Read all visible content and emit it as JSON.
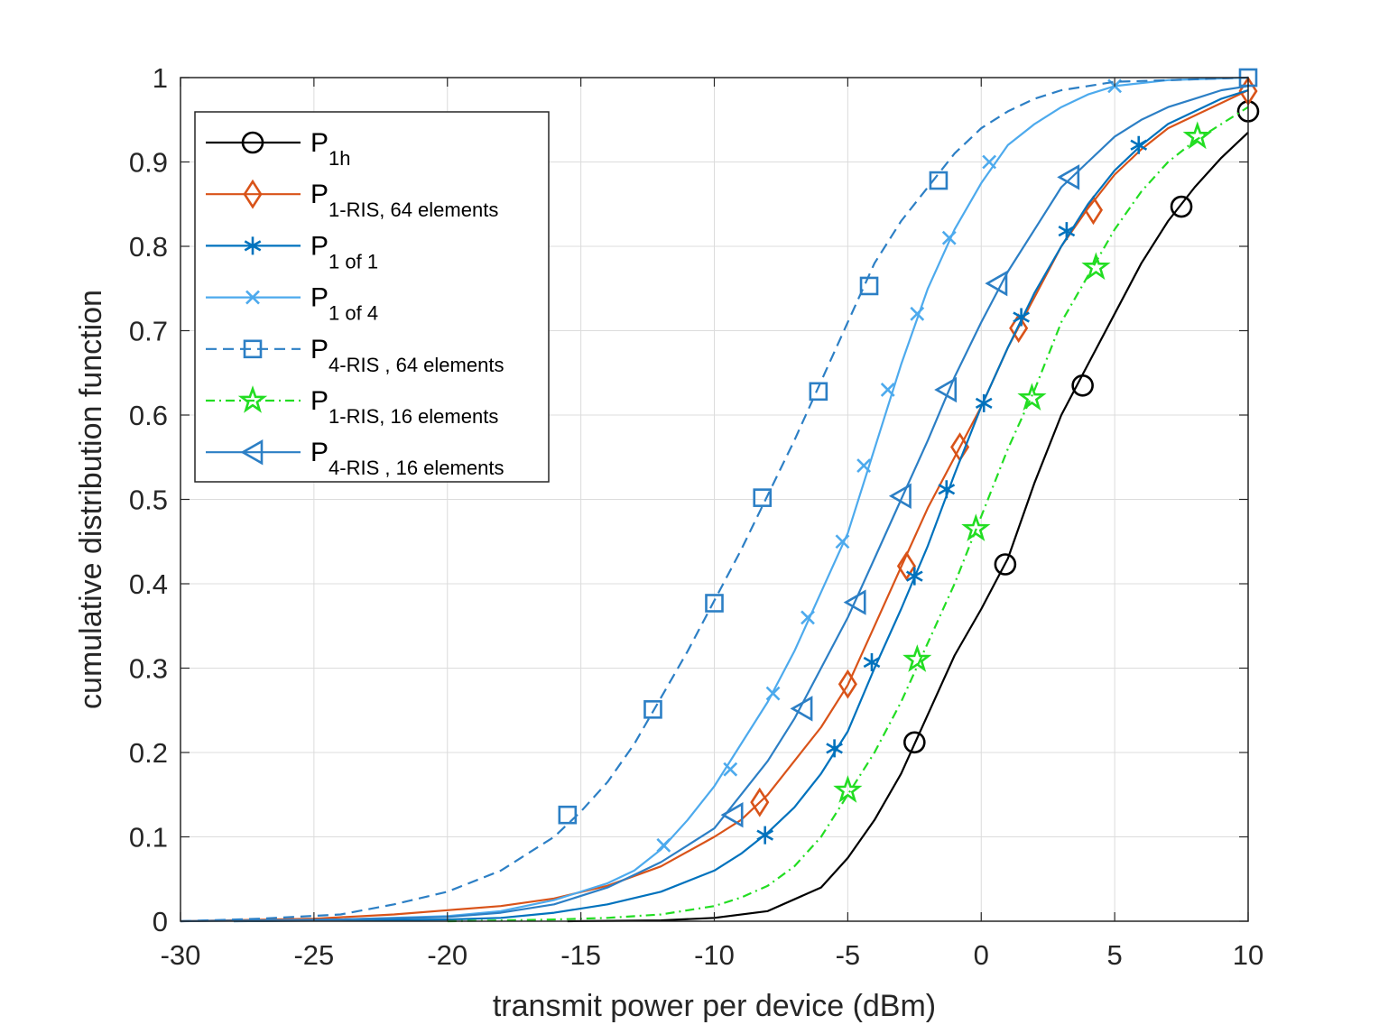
{
  "chart_data": {
    "type": "line",
    "title": "",
    "xlabel": "transmit power per device (dBm)",
    "ylabel": "cumulative distribution function",
    "xlim": [
      -30,
      10
    ],
    "ylim": [
      0,
      1
    ],
    "x_ticks": [
      -30,
      -25,
      -20,
      -15,
      -10,
      -5,
      0,
      5,
      10
    ],
    "x_tick_labels": [
      "-30",
      "-25",
      "-20",
      "-15",
      "-10",
      "-5",
      "0",
      "5",
      "10"
    ],
    "y_ticks": [
      0,
      0.1,
      0.2,
      0.3,
      0.4,
      0.5,
      0.6,
      0.7,
      0.8,
      0.9,
      1
    ],
    "y_tick_labels": [
      "0",
      "0.1",
      "0.2",
      "0.3",
      "0.4",
      "0.5",
      "0.6",
      "0.7",
      "0.8",
      "0.9",
      "1"
    ],
    "grid": true,
    "legend_position": "top-left",
    "series": [
      {
        "name": "P",
        "subscript": "1h",
        "color": "#000000",
        "dash": "solid",
        "marker": "circle",
        "curve": [
          [
            -15.5,
            0
          ],
          [
            -12,
            0.001
          ],
          [
            -10,
            0.004
          ],
          [
            -8,
            0.012
          ],
          [
            -6,
            0.04
          ],
          [
            -5,
            0.075
          ],
          [
            -4,
            0.12
          ],
          [
            -3,
            0.175
          ],
          [
            -2,
            0.245
          ],
          [
            -1,
            0.315
          ],
          [
            0,
            0.37
          ],
          [
            0.5,
            0.4
          ],
          [
            1,
            0.43
          ],
          [
            2,
            0.52
          ],
          [
            3,
            0.6
          ],
          [
            4,
            0.66
          ],
          [
            5,
            0.72
          ],
          [
            6,
            0.78
          ],
          [
            7,
            0.83
          ],
          [
            8,
            0.87
          ],
          [
            9,
            0.905
          ],
          [
            10,
            0.935
          ]
        ],
        "markers": [
          [
            -2.5,
            0.212
          ],
          [
            0.9,
            0.423
          ],
          [
            3.8,
            0.635
          ],
          [
            7.5,
            0.847
          ],
          [
            10,
            0.96
          ]
        ]
      },
      {
        "name": "P",
        "subscript": "1-RIS, 64 elements",
        "color": "#d95319",
        "dash": "solid",
        "marker": "diamond",
        "curve": [
          [
            -30,
            0
          ],
          [
            -25,
            0.003
          ],
          [
            -22,
            0.008
          ],
          [
            -20,
            0.013
          ],
          [
            -18,
            0.018
          ],
          [
            -16,
            0.027
          ],
          [
            -14,
            0.042
          ],
          [
            -12,
            0.065
          ],
          [
            -10,
            0.1
          ],
          [
            -9,
            0.12
          ],
          [
            -8,
            0.15
          ],
          [
            -7,
            0.19
          ],
          [
            -6,
            0.23
          ],
          [
            -5,
            0.28
          ],
          [
            -4,
            0.35
          ],
          [
            -3,
            0.42
          ],
          [
            -2,
            0.49
          ],
          [
            -1,
            0.55
          ],
          [
            0,
            0.61
          ],
          [
            1,
            0.68
          ],
          [
            2,
            0.74
          ],
          [
            3,
            0.8
          ],
          [
            4,
            0.845
          ],
          [
            5,
            0.885
          ],
          [
            6,
            0.915
          ],
          [
            7,
            0.94
          ],
          [
            8,
            0.955
          ],
          [
            9,
            0.97
          ],
          [
            10,
            0.985
          ]
        ],
        "markers": [
          [
            -8.3,
            0.141
          ],
          [
            -5,
            0.281
          ],
          [
            -2.8,
            0.421
          ],
          [
            -0.8,
            0.562
          ],
          [
            1.4,
            0.703
          ],
          [
            4.2,
            0.843
          ],
          [
            10,
            0.984
          ]
        ]
      },
      {
        "name": "P",
        "subscript": "1 of 1",
        "color": "#0072bd",
        "dash": "solid",
        "marker": "asterisk",
        "curve": [
          [
            -28,
            0
          ],
          [
            -24,
            0.001
          ],
          [
            -20,
            0.002
          ],
          [
            -18,
            0.004
          ],
          [
            -16,
            0.01
          ],
          [
            -14,
            0.02
          ],
          [
            -12,
            0.035
          ],
          [
            -10,
            0.06
          ],
          [
            -9,
            0.08
          ],
          [
            -8,
            0.105
          ],
          [
            -7,
            0.135
          ],
          [
            -6,
            0.175
          ],
          [
            -5,
            0.225
          ],
          [
            -4,
            0.3
          ],
          [
            -3,
            0.37
          ],
          [
            -2,
            0.445
          ],
          [
            -1,
            0.53
          ],
          [
            0,
            0.61
          ],
          [
            1,
            0.68
          ],
          [
            2,
            0.745
          ],
          [
            3,
            0.8
          ],
          [
            4,
            0.85
          ],
          [
            5,
            0.89
          ],
          [
            6,
            0.92
          ],
          [
            7,
            0.945
          ],
          [
            8,
            0.96
          ],
          [
            9,
            0.975
          ],
          [
            10,
            0.985
          ]
        ],
        "markers": [
          [
            -8.1,
            0.102
          ],
          [
            -5.5,
            0.205
          ],
          [
            -4.1,
            0.307
          ],
          [
            -2.5,
            0.409
          ],
          [
            -1.3,
            0.512
          ],
          [
            0.1,
            0.614
          ],
          [
            1.5,
            0.716
          ],
          [
            3.2,
            0.818
          ],
          [
            5.9,
            0.92
          ]
        ]
      },
      {
        "name": "P",
        "subscript": "1 of 4",
        "color": "#4daaed",
        "dash": "solid",
        "marker": "x",
        "curve": [
          [
            -28,
            0
          ],
          [
            -24,
            0.002
          ],
          [
            -20,
            0.006
          ],
          [
            -18,
            0.012
          ],
          [
            -16,
            0.025
          ],
          [
            -14,
            0.045
          ],
          [
            -13,
            0.06
          ],
          [
            -12,
            0.085
          ],
          [
            -11,
            0.12
          ],
          [
            -10,
            0.16
          ],
          [
            -9,
            0.21
          ],
          [
            -8,
            0.26
          ],
          [
            -7,
            0.32
          ],
          [
            -6,
            0.39
          ],
          [
            -5,
            0.46
          ],
          [
            -4,
            0.56
          ],
          [
            -3,
            0.66
          ],
          [
            -2,
            0.75
          ],
          [
            -1,
            0.82
          ],
          [
            0,
            0.875
          ],
          [
            1,
            0.92
          ],
          [
            2,
            0.945
          ],
          [
            3,
            0.965
          ],
          [
            4,
            0.98
          ],
          [
            5,
            0.99
          ],
          [
            7,
            0.997
          ],
          [
            10,
            1
          ]
        ],
        "markers": [
          [
            -11.9,
            0.09
          ],
          [
            -9.4,
            0.18
          ],
          [
            -7.8,
            0.27
          ],
          [
            -6.5,
            0.36
          ],
          [
            -5.2,
            0.45
          ],
          [
            -4.4,
            0.54
          ],
          [
            -3.5,
            0.63
          ],
          [
            -2.4,
            0.72
          ],
          [
            -1.2,
            0.81
          ],
          [
            0.3,
            0.9
          ],
          [
            5,
            0.99
          ]
        ]
      },
      {
        "name": "P",
        "subscript": "4-RIS , 64 elements",
        "color": "#2c7fc5",
        "dash": "dashed",
        "marker": "square",
        "curve": [
          [
            -30,
            0
          ],
          [
            -27,
            0.003
          ],
          [
            -24,
            0.008
          ],
          [
            -22,
            0.02
          ],
          [
            -20,
            0.035
          ],
          [
            -18,
            0.06
          ],
          [
            -16,
            0.1
          ],
          [
            -15,
            0.13
          ],
          [
            -14,
            0.165
          ],
          [
            -13,
            0.21
          ],
          [
            -12,
            0.265
          ],
          [
            -11,
            0.32
          ],
          [
            -10,
            0.38
          ],
          [
            -9,
            0.44
          ],
          [
            -8,
            0.505
          ],
          [
            -7,
            0.57
          ],
          [
            -6,
            0.64
          ],
          [
            -5,
            0.71
          ],
          [
            -4,
            0.78
          ],
          [
            -3,
            0.83
          ],
          [
            -2,
            0.87
          ],
          [
            -1,
            0.91
          ],
          [
            0,
            0.94
          ],
          [
            1,
            0.96
          ],
          [
            2,
            0.975
          ],
          [
            3,
            0.985
          ],
          [
            5,
            0.995
          ],
          [
            10,
            1
          ]
        ],
        "markers": [
          [
            -15.5,
            0.126
          ],
          [
            -12.3,
            0.251
          ],
          [
            -10,
            0.377
          ],
          [
            -8.2,
            0.502
          ],
          [
            -6.1,
            0.628
          ],
          [
            -4.2,
            0.753
          ],
          [
            -1.6,
            0.878
          ],
          [
            10,
            1
          ]
        ]
      },
      {
        "name": "P",
        "subscript": "1-RIS, 16 elements",
        "color": "#22dd22",
        "dash": "dashdot",
        "marker": "star",
        "curve": [
          [
            -20,
            0
          ],
          [
            -16,
            0.002
          ],
          [
            -14,
            0.004
          ],
          [
            -12,
            0.008
          ],
          [
            -10,
            0.018
          ],
          [
            -9,
            0.028
          ],
          [
            -8,
            0.042
          ],
          [
            -7,
            0.065
          ],
          [
            -6,
            0.1
          ],
          [
            -5,
            0.15
          ],
          [
            -4,
            0.2
          ],
          [
            -3,
            0.26
          ],
          [
            -2,
            0.33
          ],
          [
            -1,
            0.4
          ],
          [
            0,
            0.48
          ],
          [
            1,
            0.56
          ],
          [
            2,
            0.63
          ],
          [
            3,
            0.71
          ],
          [
            4,
            0.765
          ],
          [
            5,
            0.82
          ],
          [
            6,
            0.865
          ],
          [
            7,
            0.9
          ],
          [
            8,
            0.925
          ],
          [
            9,
            0.945
          ],
          [
            10,
            0.965
          ]
        ],
        "markers": [
          [
            -5,
            0.155
          ],
          [
            -2.4,
            0.31
          ],
          [
            -0.2,
            0.465
          ],
          [
            1.9,
            0.62
          ],
          [
            4.3,
            0.775
          ],
          [
            8.1,
            0.93
          ]
        ]
      },
      {
        "name": "P",
        "subscript": "4-RIS , 16 elements",
        "color": "#2c7fc5",
        "dash": "solid",
        "marker": "triangle-left",
        "curve": [
          [
            -30,
            0
          ],
          [
            -24,
            0.002
          ],
          [
            -20,
            0.005
          ],
          [
            -18,
            0.01
          ],
          [
            -16,
            0.02
          ],
          [
            -14,
            0.04
          ],
          [
            -13,
            0.055
          ],
          [
            -12,
            0.07
          ],
          [
            -11,
            0.09
          ],
          [
            -10,
            0.11
          ],
          [
            -9,
            0.15
          ],
          [
            -8,
            0.19
          ],
          [
            -7,
            0.24
          ],
          [
            -6,
            0.3
          ],
          [
            -5,
            0.36
          ],
          [
            -4,
            0.43
          ],
          [
            -3,
            0.5
          ],
          [
            -2,
            0.57
          ],
          [
            -1,
            0.645
          ],
          [
            0,
            0.71
          ],
          [
            1,
            0.77
          ],
          [
            2,
            0.82
          ],
          [
            3,
            0.87
          ],
          [
            4,
            0.9
          ],
          [
            5,
            0.93
          ],
          [
            6,
            0.95
          ],
          [
            7,
            0.965
          ],
          [
            8,
            0.975
          ],
          [
            9,
            0.985
          ],
          [
            10,
            0.99
          ]
        ],
        "markers": [
          [
            -9.3,
            0.126
          ],
          [
            -6.7,
            0.252
          ],
          [
            -4.7,
            0.378
          ],
          [
            -3,
            0.504
          ],
          [
            -1.3,
            0.63
          ],
          [
            0.6,
            0.756
          ],
          [
            3.3,
            0.882
          ]
        ]
      }
    ]
  }
}
